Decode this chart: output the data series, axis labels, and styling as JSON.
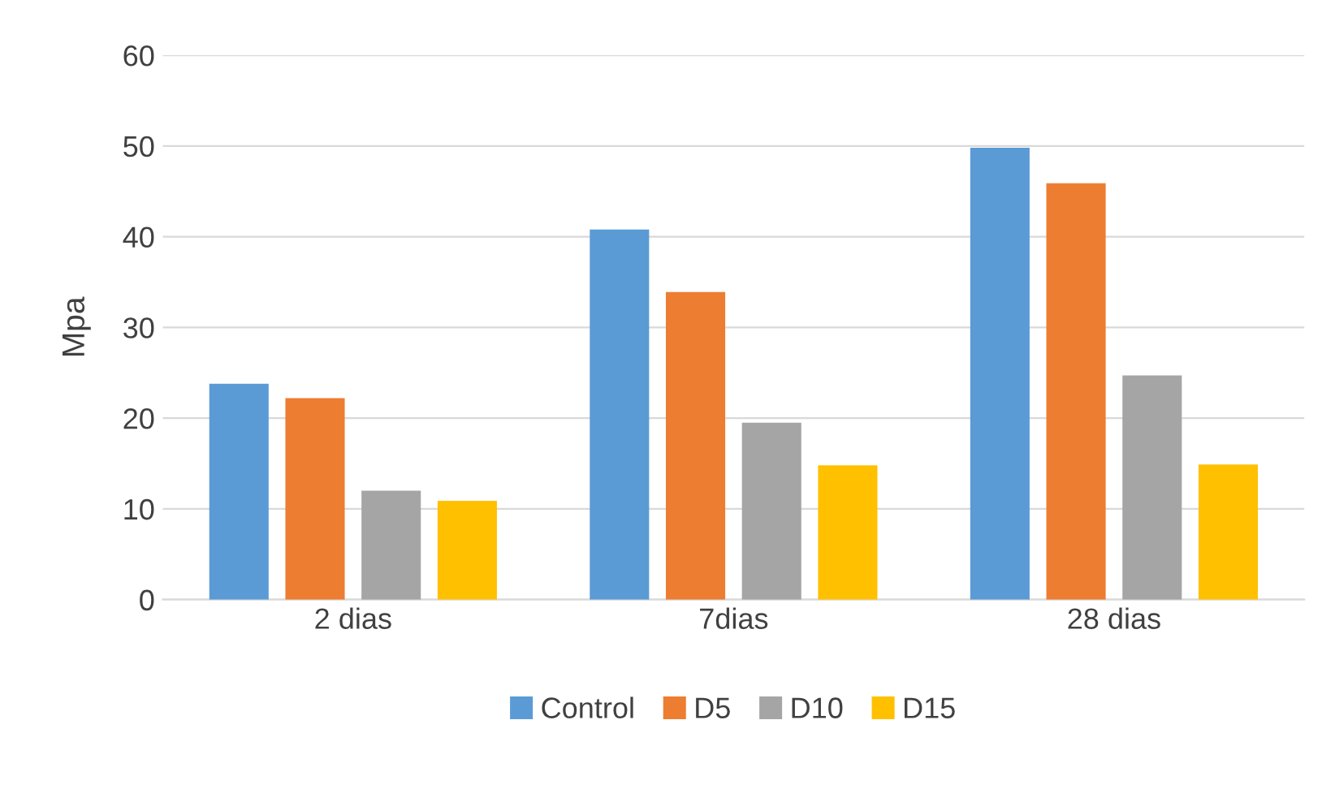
{
  "chart_data": {
    "type": "bar",
    "ylabel": "Mpa",
    "categories": [
      "2 dias",
      "7dias",
      "28 dias"
    ],
    "series": [
      {
        "name": "Control",
        "color": "#5b9bd5",
        "values": [
          23.8,
          40.8,
          49.8
        ]
      },
      {
        "name": "D5",
        "color": "#ed7d31",
        "values": [
          22.2,
          33.9,
          45.9
        ]
      },
      {
        "name": "D10",
        "color": "#a5a5a5",
        "values": [
          12.0,
          19.5,
          24.7
        ]
      },
      {
        "name": "D15",
        "color": "#ffc000",
        "values": [
          10.9,
          14.8,
          14.9
        ]
      }
    ],
    "ylim": [
      0,
      60
    ],
    "yticks": [
      0,
      10,
      20,
      30,
      40,
      50,
      60
    ],
    "grid": "y",
    "legend": "bottom"
  }
}
